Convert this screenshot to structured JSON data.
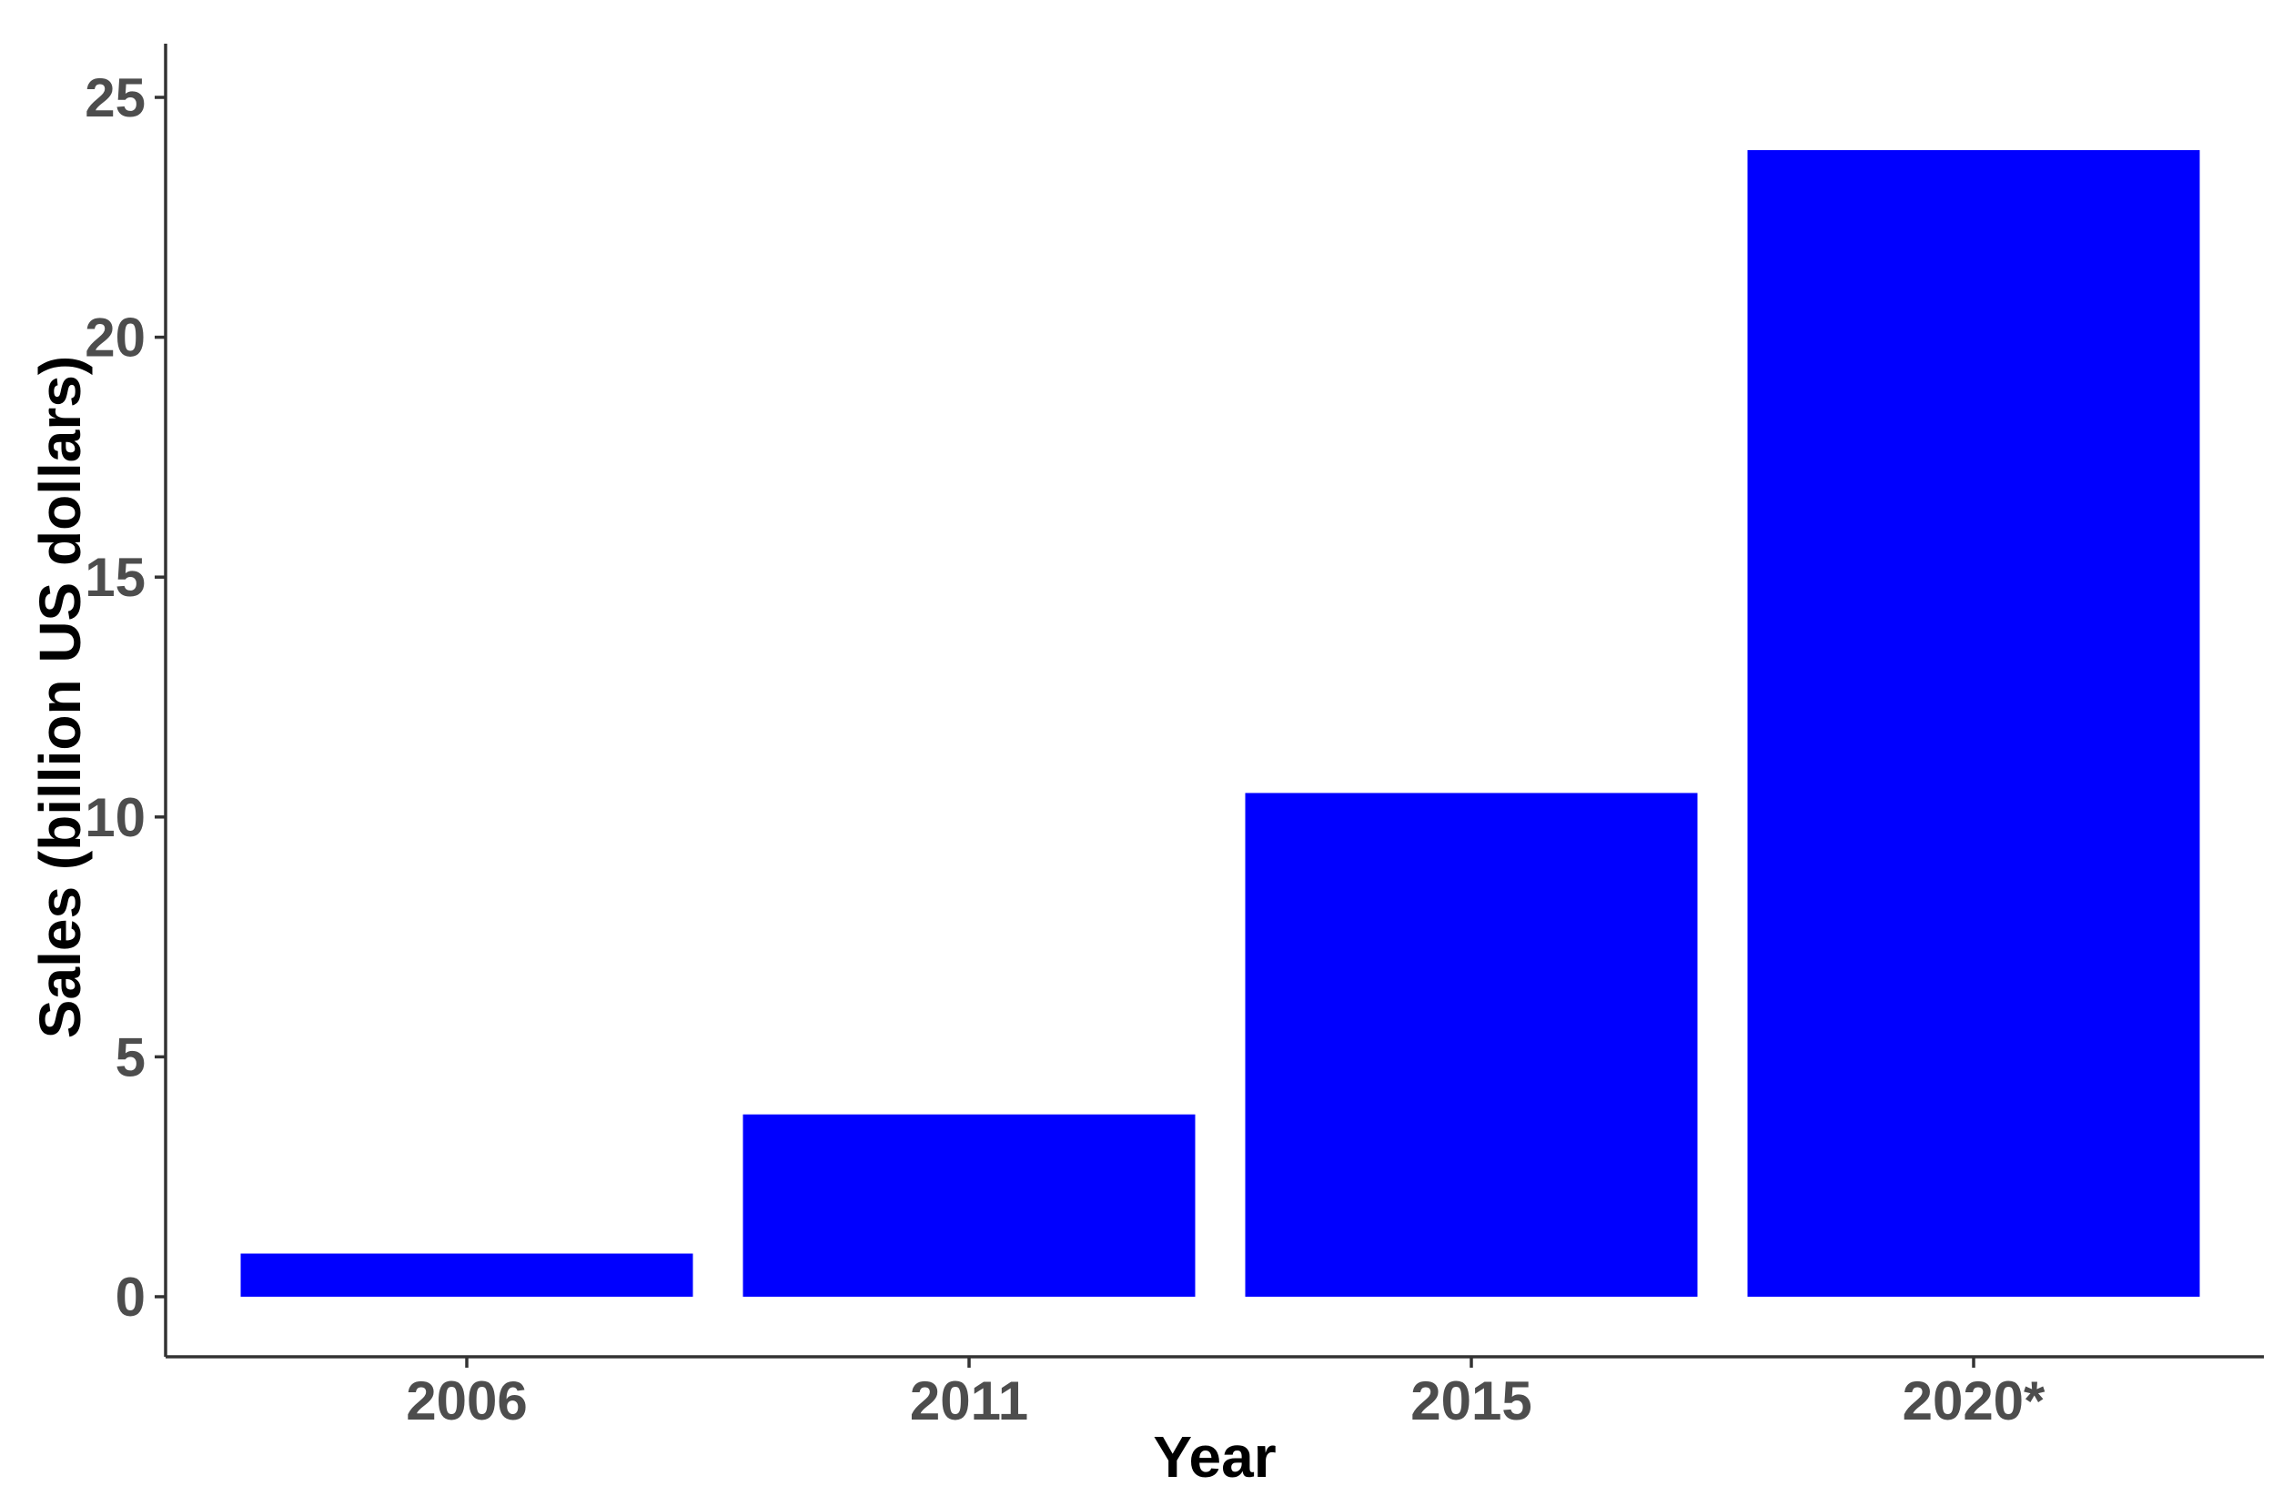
{
  "chart_data": {
    "type": "bar",
    "categories": [
      "2006",
      "2011",
      "2015",
      "2020*"
    ],
    "values": [
      0.9,
      3.8,
      10.5,
      23.9
    ],
    "title": "",
    "xlabel": "Year",
    "ylabel": "Sales (billion US dollars)",
    "ylim": [
      0,
      25
    ],
    "yticks": [
      0,
      5,
      10,
      15,
      20,
      25
    ],
    "ytick_labels": [
      "0",
      "5",
      "10",
      "15",
      "20",
      "25"
    ],
    "grid": false,
    "legend": "none",
    "bar_color": "#0000ff",
    "axis_color": "#333333",
    "tick_label_color": "#4d4d4d"
  }
}
